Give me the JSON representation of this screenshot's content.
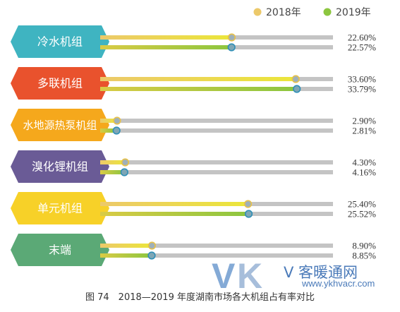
{
  "chart_data": {
    "type": "bar",
    "title": "",
    "xlabel": "",
    "ylabel": "",
    "xlim": [
      0,
      40
    ],
    "categories": [
      "冷水机组",
      "多联机组",
      "水地源热泵机组",
      "溴化锂机组",
      "单元机组",
      "末端"
    ],
    "category_colors": [
      "#3fb4c1",
      "#e9522d",
      "#f5a81c",
      "#6a5b96",
      "#f7d128",
      "#5ba976"
    ],
    "series": [
      {
        "name": "2018年",
        "colors": [
          "#ecc96a",
          "#ebe63a"
        ],
        "values": [
          22.6,
          33.6,
          2.9,
          4.3,
          25.4,
          8.9
        ],
        "labels": [
          "22.60%",
          "33.60%",
          "2.90%",
          "4.30%",
          "25.40%",
          "8.90%"
        ]
      },
      {
        "name": "2019年",
        "colors": [
          "#d9cb45",
          "#8cc63f"
        ],
        "values": [
          22.57,
          33.79,
          2.81,
          4.16,
          25.52,
          8.85
        ],
        "labels": [
          "22.57%",
          "33.79%",
          "2.81%",
          "4.16%",
          "25.52%",
          "8.85%"
        ]
      }
    ],
    "legend": {
      "position": "top-right",
      "items": [
        "2018年",
        "2019年"
      ]
    },
    "grid": false
  },
  "caption": "图 74　2018—2019 年度湖南市场各大机组占有率对比",
  "watermark": {
    "v": "V",
    "k": "K",
    "brand": "V 客暖通网",
    "url": "www.ykhvacr.com"
  }
}
